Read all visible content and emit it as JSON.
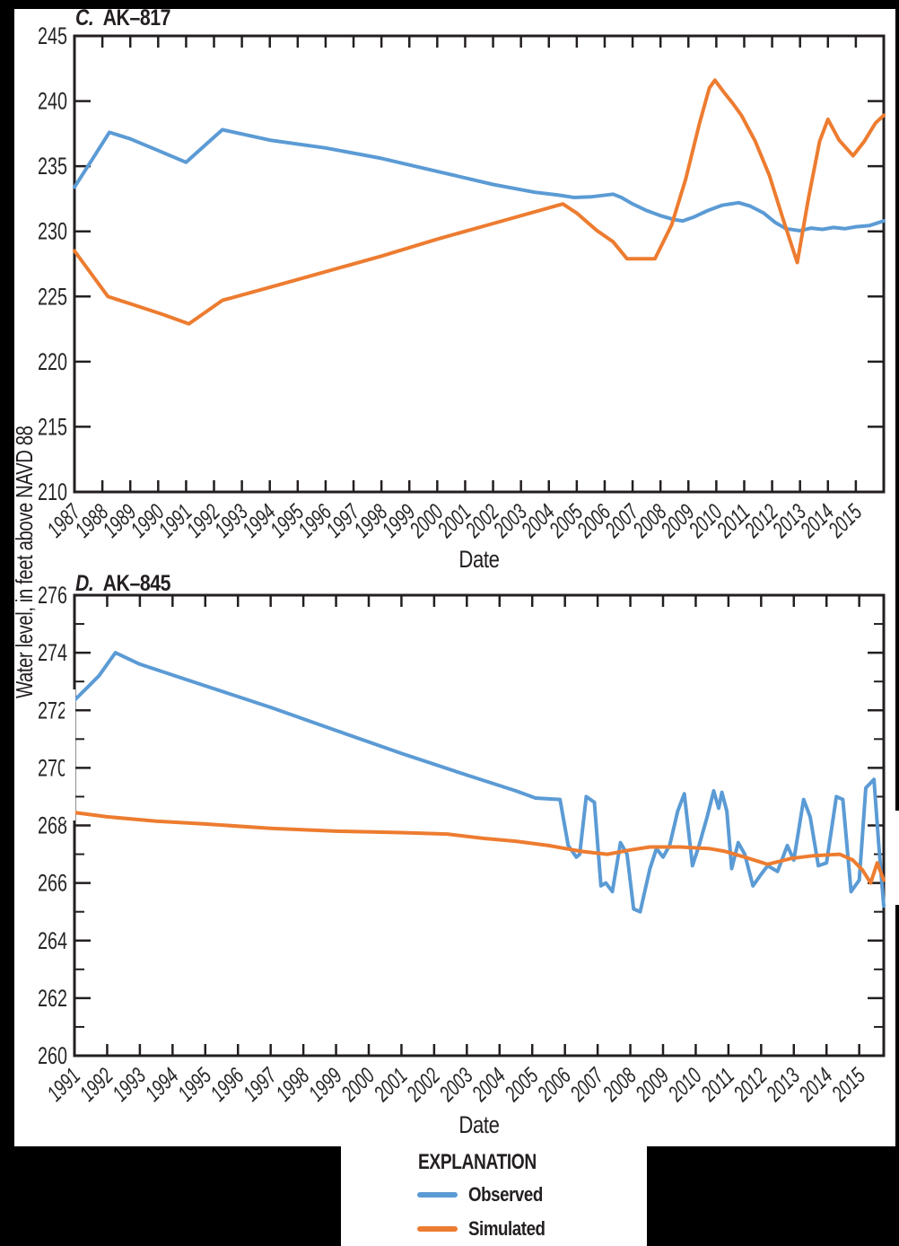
{
  "page": {
    "background": "#000000",
    "panel_background": "#ffffff",
    "axis_color": "#231f20",
    "tick_label_color": "#262626"
  },
  "ylabel": "Water level, in feet above NAVD 88",
  "legend": {
    "title": "EXPLANATION",
    "items": [
      {
        "label": "Observed",
        "color": "#5B9BD5"
      },
      {
        "label": "Simulated",
        "color": "#ED7C30"
      }
    ]
  },
  "chart_data": [
    {
      "type": "line",
      "panel_letter": "C.",
      "title": "AK–817",
      "xlabel": "Date",
      "x_min": 1987,
      "x_max": 2016,
      "y_min": 210,
      "y_max": 245,
      "grid": false,
      "y_major_ticks": [
        245,
        240,
        235,
        230,
        225,
        220,
        215,
        210
      ],
      "y_minor_ticks": [],
      "x_tick_labels": [
        "1987",
        "1988",
        "1989",
        "1990",
        "1991",
        "1992",
        "1993",
        "1994",
        "1995",
        "1996",
        "1997",
        "1998",
        "1999",
        "2000",
        "2001",
        "2002",
        "2003",
        "2004",
        "2005",
        "2006",
        "2007",
        "2008",
        "2009",
        "2010",
        "2011",
        "2012",
        "2013",
        "2014",
        "2015"
      ],
      "series": [
        {
          "name": "Observed",
          "color": "#5B9BD5",
          "points": [
            [
              1987.0,
              233.4
            ],
            [
              1987.6,
              235.4
            ],
            [
              1988.25,
              237.6
            ],
            [
              1989.0,
              237.1
            ],
            [
              1990.0,
              236.2
            ],
            [
              1991.0,
              235.3
            ],
            [
              1992.3,
              237.8
            ],
            [
              1994.0,
              237.0
            ],
            [
              1996.0,
              236.4
            ],
            [
              1998.0,
              235.6
            ],
            [
              2000.0,
              234.6
            ],
            [
              2002.0,
              233.6
            ],
            [
              2003.5,
              233.0
            ],
            [
              2004.3,
              232.8
            ],
            [
              2004.9,
              232.6
            ],
            [
              2005.5,
              232.65
            ],
            [
              2005.9,
              232.75
            ],
            [
              2006.3,
              232.85
            ],
            [
              2006.6,
              232.6
            ],
            [
              2007.0,
              232.1
            ],
            [
              2007.5,
              231.6
            ],
            [
              2008.0,
              231.2
            ],
            [
              2008.5,
              230.9
            ],
            [
              2008.8,
              230.8
            ],
            [
              2009.2,
              231.1
            ],
            [
              2009.7,
              231.6
            ],
            [
              2010.2,
              232.0
            ],
            [
              2010.8,
              232.2
            ],
            [
              2011.2,
              231.95
            ],
            [
              2011.7,
              231.4
            ],
            [
              2012.1,
              230.7
            ],
            [
              2012.5,
              230.2
            ],
            [
              2013.0,
              230.05
            ],
            [
              2013.4,
              230.25
            ],
            [
              2013.8,
              230.15
            ],
            [
              2014.2,
              230.3
            ],
            [
              2014.6,
              230.2
            ],
            [
              2015.0,
              230.35
            ],
            [
              2015.5,
              230.45
            ],
            [
              2016.0,
              230.8
            ]
          ]
        },
        {
          "name": "Simulated",
          "color": "#ED7C30",
          "points": [
            [
              1987.0,
              228.5
            ],
            [
              1988.2,
              225.0
            ],
            [
              1989.2,
              224.3
            ],
            [
              1990.2,
              223.6
            ],
            [
              1991.1,
              222.9
            ],
            [
              1992.3,
              224.7
            ],
            [
              1994.0,
              225.7
            ],
            [
              1996.0,
              226.9
            ],
            [
              1998.0,
              228.1
            ],
            [
              2000.0,
              229.4
            ],
            [
              2002.0,
              230.6
            ],
            [
              2004.5,
              232.1
            ],
            [
              2005.0,
              231.4
            ],
            [
              2005.7,
              230.1
            ],
            [
              2006.3,
              229.2
            ],
            [
              2006.8,
              227.9
            ],
            [
              2007.8,
              227.9
            ],
            [
              2008.4,
              230.5
            ],
            [
              2008.9,
              234.0
            ],
            [
              2009.4,
              238.3
            ],
            [
              2009.75,
              241.0
            ],
            [
              2009.95,
              241.6
            ],
            [
              2010.3,
              240.6
            ],
            [
              2010.6,
              239.8
            ],
            [
              2010.9,
              238.9
            ],
            [
              2011.4,
              236.9
            ],
            [
              2011.9,
              234.3
            ],
            [
              2012.4,
              230.9
            ],
            [
              2012.9,
              227.6
            ],
            [
              2013.3,
              232.5
            ],
            [
              2013.7,
              236.9
            ],
            [
              2014.0,
              238.6
            ],
            [
              2014.4,
              237.0
            ],
            [
              2014.9,
              235.8
            ],
            [
              2015.3,
              236.9
            ],
            [
              2015.7,
              238.3
            ],
            [
              2016.0,
              238.9
            ]
          ]
        }
      ]
    },
    {
      "type": "line",
      "panel_letter": "D.",
      "title": "AK–845",
      "xlabel": "Date",
      "x_min": 1991,
      "x_max": 2015.75,
      "y_min": 260,
      "y_max": 276,
      "grid": false,
      "y_major_ticks": [
        276,
        274,
        272,
        270,
        268,
        266,
        264,
        262,
        260
      ],
      "y_minor_ticks": [
        275,
        273,
        271,
        269,
        267,
        265,
        263,
        261
      ],
      "x_tick_labels": [
        "1991",
        "1992",
        "1993",
        "1994",
        "1995",
        "1996",
        "1997",
        "1998",
        "1999",
        "2000",
        "2001",
        "2002",
        "2003",
        "2004",
        "2005",
        "2006",
        "2007",
        "2008",
        "2009",
        "2010",
        "2011",
        "2012",
        "2013",
        "2014",
        "2015"
      ],
      "series": [
        {
          "name": "Observed",
          "color": "#5B9BD5",
          "points": [
            [
              1991.0,
              272.35
            ],
            [
              1991.4,
              272.8
            ],
            [
              1991.75,
              273.2
            ],
            [
              1992.25,
              274.0
            ],
            [
              1993.0,
              273.6
            ],
            [
              1995.0,
              272.85
            ],
            [
              1997.0,
              272.1
            ],
            [
              1999.0,
              271.3
            ],
            [
              2001.0,
              270.5
            ],
            [
              2003.0,
              269.75
            ],
            [
              2004.5,
              269.2
            ],
            [
              2005.1,
              268.95
            ],
            [
              2005.85,
              268.9
            ],
            [
              2006.1,
              267.3
            ],
            [
              2006.35,
              266.9
            ],
            [
              2006.45,
              267.0
            ],
            [
              2006.65,
              269.0
            ],
            [
              2006.9,
              268.8
            ],
            [
              2007.1,
              265.9
            ],
            [
              2007.25,
              266.0
            ],
            [
              2007.45,
              265.7
            ],
            [
              2007.7,
              267.4
            ],
            [
              2007.9,
              267.0
            ],
            [
              2008.1,
              265.1
            ],
            [
              2008.3,
              265.0
            ],
            [
              2008.6,
              266.5
            ],
            [
              2008.8,
              267.2
            ],
            [
              2009.0,
              266.9
            ],
            [
              2009.2,
              267.3
            ],
            [
              2009.45,
              268.5
            ],
            [
              2009.65,
              269.1
            ],
            [
              2009.9,
              266.6
            ],
            [
              2010.1,
              267.3
            ],
            [
              2010.35,
              268.3
            ],
            [
              2010.55,
              269.2
            ],
            [
              2010.7,
              268.6
            ],
            [
              2010.8,
              269.15
            ],
            [
              2010.95,
              268.5
            ],
            [
              2011.1,
              266.5
            ],
            [
              2011.3,
              267.4
            ],
            [
              2011.5,
              267.0
            ],
            [
              2011.75,
              265.9
            ],
            [
              2012.0,
              266.3
            ],
            [
              2012.2,
              266.6
            ],
            [
              2012.5,
              266.4
            ],
            [
              2012.8,
              267.3
            ],
            [
              2013.0,
              266.8
            ],
            [
              2013.3,
              268.9
            ],
            [
              2013.5,
              268.3
            ],
            [
              2013.75,
              266.6
            ],
            [
              2014.0,
              266.7
            ],
            [
              2014.3,
              269.0
            ],
            [
              2014.5,
              268.9
            ],
            [
              2014.75,
              265.7
            ],
            [
              2015.0,
              266.1
            ],
            [
              2015.2,
              269.3
            ],
            [
              2015.45,
              269.6
            ],
            [
              2015.6,
              267.3
            ],
            [
              2015.75,
              265.2
            ]
          ]
        },
        {
          "name": "Simulated",
          "color": "#ED7C30",
          "points": [
            [
              1991.0,
              268.45
            ],
            [
              1992.0,
              268.3
            ],
            [
              1993.5,
              268.15
            ],
            [
              1995.0,
              268.05
            ],
            [
              1997.0,
              267.9
            ],
            [
              1999.0,
              267.8
            ],
            [
              2001.0,
              267.75
            ],
            [
              2002.4,
              267.7
            ],
            [
              2003.5,
              267.55
            ],
            [
              2004.5,
              267.45
            ],
            [
              2005.5,
              267.3
            ],
            [
              2006.5,
              267.1
            ],
            [
              2007.3,
              267.0
            ],
            [
              2008.0,
              267.15
            ],
            [
              2008.6,
              267.25
            ],
            [
              2009.5,
              267.25
            ],
            [
              2010.4,
              267.2
            ],
            [
              2010.9,
              267.1
            ],
            [
              2011.5,
              266.9
            ],
            [
              2012.2,
              266.65
            ],
            [
              2012.9,
              266.85
            ],
            [
              2013.6,
              266.95
            ],
            [
              2014.4,
              267.0
            ],
            [
              2014.8,
              266.8
            ],
            [
              2015.1,
              266.45
            ],
            [
              2015.35,
              266.0
            ],
            [
              2015.55,
              266.7
            ],
            [
              2015.75,
              266.1
            ]
          ]
        }
      ]
    }
  ]
}
